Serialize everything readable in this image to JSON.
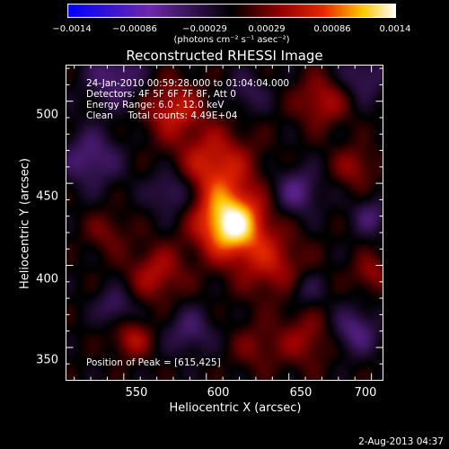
{
  "colorbar": {
    "ticks": [
      "−0.0014",
      "−0.00086",
      "−0.00029",
      "0.00029",
      "0.00086",
      "0.0014"
    ],
    "units": "(photons cm⁻² s⁻¹ asec⁻²)"
  },
  "info": {
    "time": "24-Jan-2010 00:59:28.000 to 01:04:04.000",
    "detectors": "Detectors: 4F 5F 6F 7F 8F, Att 0",
    "energy": "Energy Range: 6.0 - 12.0 keV",
    "clean": "Clean     Total counts: 4.49E+04"
  },
  "peak_label": "Position of Peak = [615,425]",
  "timestamp": "2-Aug-2013 04:37",
  "chart_data": {
    "type": "heatmap",
    "title": "Reconstructed RHESSI Image",
    "xlabel": "Heliocentric X (arcsec)",
    "ylabel": "Heliocentric Y (arcsec)",
    "xlim": [
      515,
      707
    ],
    "ylim": [
      330,
      522
    ],
    "xticks": [
      "550",
      "600",
      "650",
      "700"
    ],
    "yticks": [
      "350",
      "400",
      "450",
      "500"
    ],
    "colorbar_range": [
      -0.0014,
      0.0014
    ],
    "peak": {
      "x": 615,
      "y": 425
    },
    "blobs": [
      {
        "x": 615,
        "y": 425,
        "amp": 0.0014,
        "sigma": 14
      },
      {
        "x": 605,
        "y": 460,
        "amp": 0.0007,
        "sigma": 16
      },
      {
        "x": 580,
        "y": 495,
        "amp": 0.0006,
        "sigma": 12
      },
      {
        "x": 640,
        "y": 400,
        "amp": 0.0005,
        "sigma": 14
      },
      {
        "x": 570,
        "y": 395,
        "amp": 0.0005,
        "sigma": 12
      },
      {
        "x": 555,
        "y": 355,
        "amp": 0.0005,
        "sigma": 8
      },
      {
        "x": 670,
        "y": 500,
        "amp": 0.0005,
        "sigma": 11
      },
      {
        "x": 690,
        "y": 460,
        "amp": 0.0004,
        "sigma": 9
      },
      {
        "x": 660,
        "y": 355,
        "amp": 0.0004,
        "sigma": 12
      },
      {
        "x": 630,
        "y": 350,
        "amp": 0.0003,
        "sigma": 10
      },
      {
        "x": 540,
        "y": 420,
        "amp": 0.0003,
        "sigma": 9
      },
      {
        "x": 700,
        "y": 395,
        "amp": 0.0004,
        "sigma": 8
      },
      {
        "x": 530,
        "y": 465,
        "amp": -0.0005,
        "sigma": 12
      },
      {
        "x": 545,
        "y": 515,
        "amp": -0.0005,
        "sigma": 12
      },
      {
        "x": 580,
        "y": 445,
        "amp": -0.0005,
        "sigma": 10
      },
      {
        "x": 655,
        "y": 445,
        "amp": -0.0005,
        "sigma": 10
      },
      {
        "x": 695,
        "y": 515,
        "amp": -0.0004,
        "sigma": 10
      },
      {
        "x": 700,
        "y": 430,
        "amp": -0.0004,
        "sigma": 8
      },
      {
        "x": 590,
        "y": 360,
        "amp": -0.0004,
        "sigma": 10
      },
      {
        "x": 545,
        "y": 375,
        "amp": -0.0004,
        "sigma": 8
      },
      {
        "x": 690,
        "y": 360,
        "amp": -0.0005,
        "sigma": 10
      },
      {
        "x": 660,
        "y": 385,
        "amp": -0.0003,
        "sigma": 8
      },
      {
        "x": 625,
        "y": 505,
        "amp": -0.0003,
        "sigma": 9
      }
    ]
  }
}
